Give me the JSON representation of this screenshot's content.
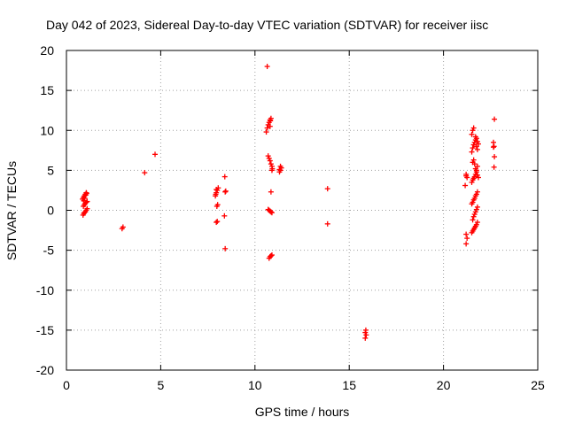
{
  "chart_data": {
    "type": "scatter",
    "title": "Day 042 of 2023, Sidereal Day-to-day VTEC variation (SDTVAR) for receiver iisc",
    "xlabel": "GPS time / hours",
    "ylabel": "SDTVAR / TECUs",
    "xlim": [
      0,
      25
    ],
    "ylim": [
      -20,
      20
    ],
    "xticks": [
      0,
      5,
      10,
      15,
      20,
      25
    ],
    "yticks": [
      -20,
      -15,
      -10,
      -5,
      0,
      5,
      10,
      15,
      20
    ],
    "xtick_labels": [
      "0",
      "5",
      "10",
      "15",
      "20",
      "25"
    ],
    "ytick_labels": [
      "-20",
      "-15",
      "-10",
      "-5",
      "0",
      "5",
      "10",
      "15",
      "20"
    ],
    "grid": true,
    "marker": "+",
    "marker_color": "#ff0000",
    "series": [
      {
        "name": "iisc",
        "x": [
          0.88,
          0.92,
          0.95,
          1.0,
          1.05,
          1.1,
          0.9,
          0.95,
          1.0,
          1.05,
          1.1,
          0.85,
          0.9,
          0.95,
          1.0,
          1.05,
          0.92,
          0.97,
          1.02,
          1.07,
          2.95,
          3.0,
          4.15,
          4.7,
          7.95,
          8.0,
          7.98,
          8.02,
          7.9,
          7.95,
          8.0,
          8.05,
          7.92,
          7.95,
          8.4,
          8.42,
          8.38,
          8.42,
          8.45,
          10.65,
          10.7,
          10.6,
          10.65,
          10.7,
          10.75,
          10.8,
          10.85,
          10.8,
          10.82,
          10.75,
          10.8,
          10.85,
          10.9,
          10.92,
          10.9,
          10.85,
          10.7,
          10.75,
          10.8,
          10.85,
          10.9,
          10.75,
          10.8,
          10.85,
          10.9,
          11.3,
          11.35,
          11.4,
          11.35,
          11.3,
          13.85,
          13.85,
          15.85,
          15.9,
          15.85,
          15.88,
          21.2,
          21.2,
          21.25,
          21.15,
          21.2,
          21.25,
          21.2,
          21.5,
          21.55,
          21.6,
          21.65,
          21.7,
          21.75,
          21.8,
          21.55,
          21.6,
          21.65,
          21.7,
          21.75,
          21.8,
          21.5,
          21.55,
          21.6,
          21.65,
          21.7,
          21.75,
          21.8,
          21.5,
          21.55,
          21.6,
          21.65,
          21.7,
          21.75,
          21.8,
          21.55,
          21.6,
          21.65,
          21.7,
          21.75,
          21.8,
          21.85,
          21.5,
          21.55,
          21.6,
          21.65,
          21.7,
          21.75,
          21.8,
          21.85,
          21.5,
          21.55,
          21.6,
          21.7,
          21.75,
          21.8,
          22.7,
          22.65,
          22.68,
          22.65,
          22.7,
          22.68
        ],
        "y": [
          -0.6,
          -0.4,
          -0.3,
          -0.2,
          0,
          0.2,
          0.5,
          0.7,
          0.9,
          1.0,
          1.1,
          1.4,
          1.6,
          1.8,
          2.0,
          2.2,
          1.2,
          1.5,
          1.9,
          2.1,
          -2.3,
          -2.1,
          4.7,
          7.0,
          -1.5,
          -1.4,
          0.5,
          0.7,
          1.8,
          2.2,
          2.5,
          2.8,
          2.0,
          2.6,
          4.2,
          2.3,
          -0.7,
          -4.8,
          2.4,
          18.0,
          6.8,
          9.8,
          10.3,
          10.7,
          11.0,
          11.3,
          11.5,
          10.5,
          11.2,
          6.5,
          6.2,
          5.8,
          5.5,
          5.2,
          5.0,
          2.3,
          0.1,
          0.0,
          -0.1,
          -0.2,
          -0.3,
          -6.0,
          -5.8,
          -5.7,
          -5.6,
          4.8,
          5.0,
          5.3,
          5.5,
          5.1,
          2.7,
          -1.7,
          -16.0,
          -15.6,
          -15.3,
          -15.0,
          4.5,
          4.3,
          4.1,
          3.1,
          -3.0,
          -3.5,
          -4.2,
          -2.8,
          -2.6,
          -2.4,
          -2.2,
          -2.0,
          -1.8,
          -1.5,
          -1.2,
          -0.8,
          -0.5,
          -0.2,
          0.1,
          0.4,
          0.8,
          1.0,
          1.3,
          1.5,
          1.8,
          2.0,
          2.3,
          3.5,
          3.8,
          4.0,
          4.2,
          4.5,
          5.0,
          5.5,
          6.0,
          6.3,
          5.8,
          5.2,
          4.8,
          4.4,
          4.1,
          7.3,
          7.8,
          8.2,
          8.5,
          8.8,
          9.0,
          8.6,
          8.3,
          9.5,
          10.0,
          10.3,
          9.2,
          8.0,
          7.6,
          11.4,
          8.5,
          8.0,
          7.9,
          6.7,
          5.4
        ]
      }
    ]
  }
}
